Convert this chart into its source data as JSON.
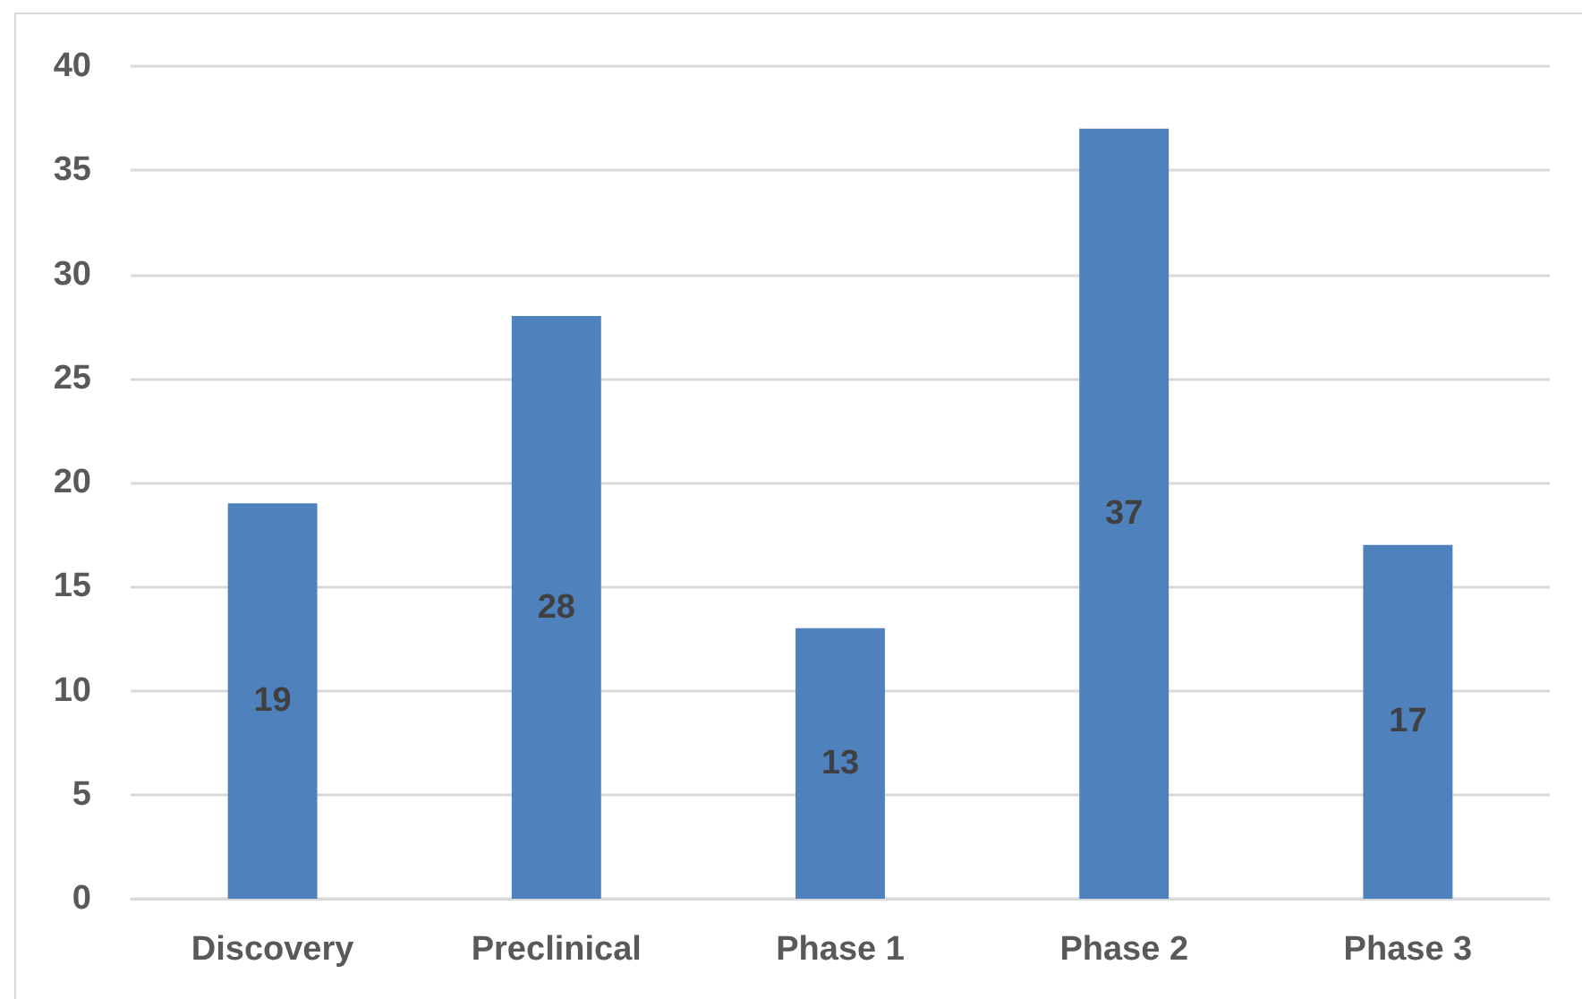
{
  "chart_data": {
    "type": "bar",
    "categories": [
      "Discovery",
      "Preclinical",
      "Phase 1",
      "Phase 2",
      "Phase 3"
    ],
    "values": [
      19,
      28,
      13,
      37,
      17
    ],
    "color": "#4f81bd",
    "ylim": [
      0,
      40
    ],
    "yticks": [
      0,
      5,
      10,
      15,
      20,
      25,
      30,
      35,
      40
    ],
    "grid": "y",
    "data_labels": true
  }
}
